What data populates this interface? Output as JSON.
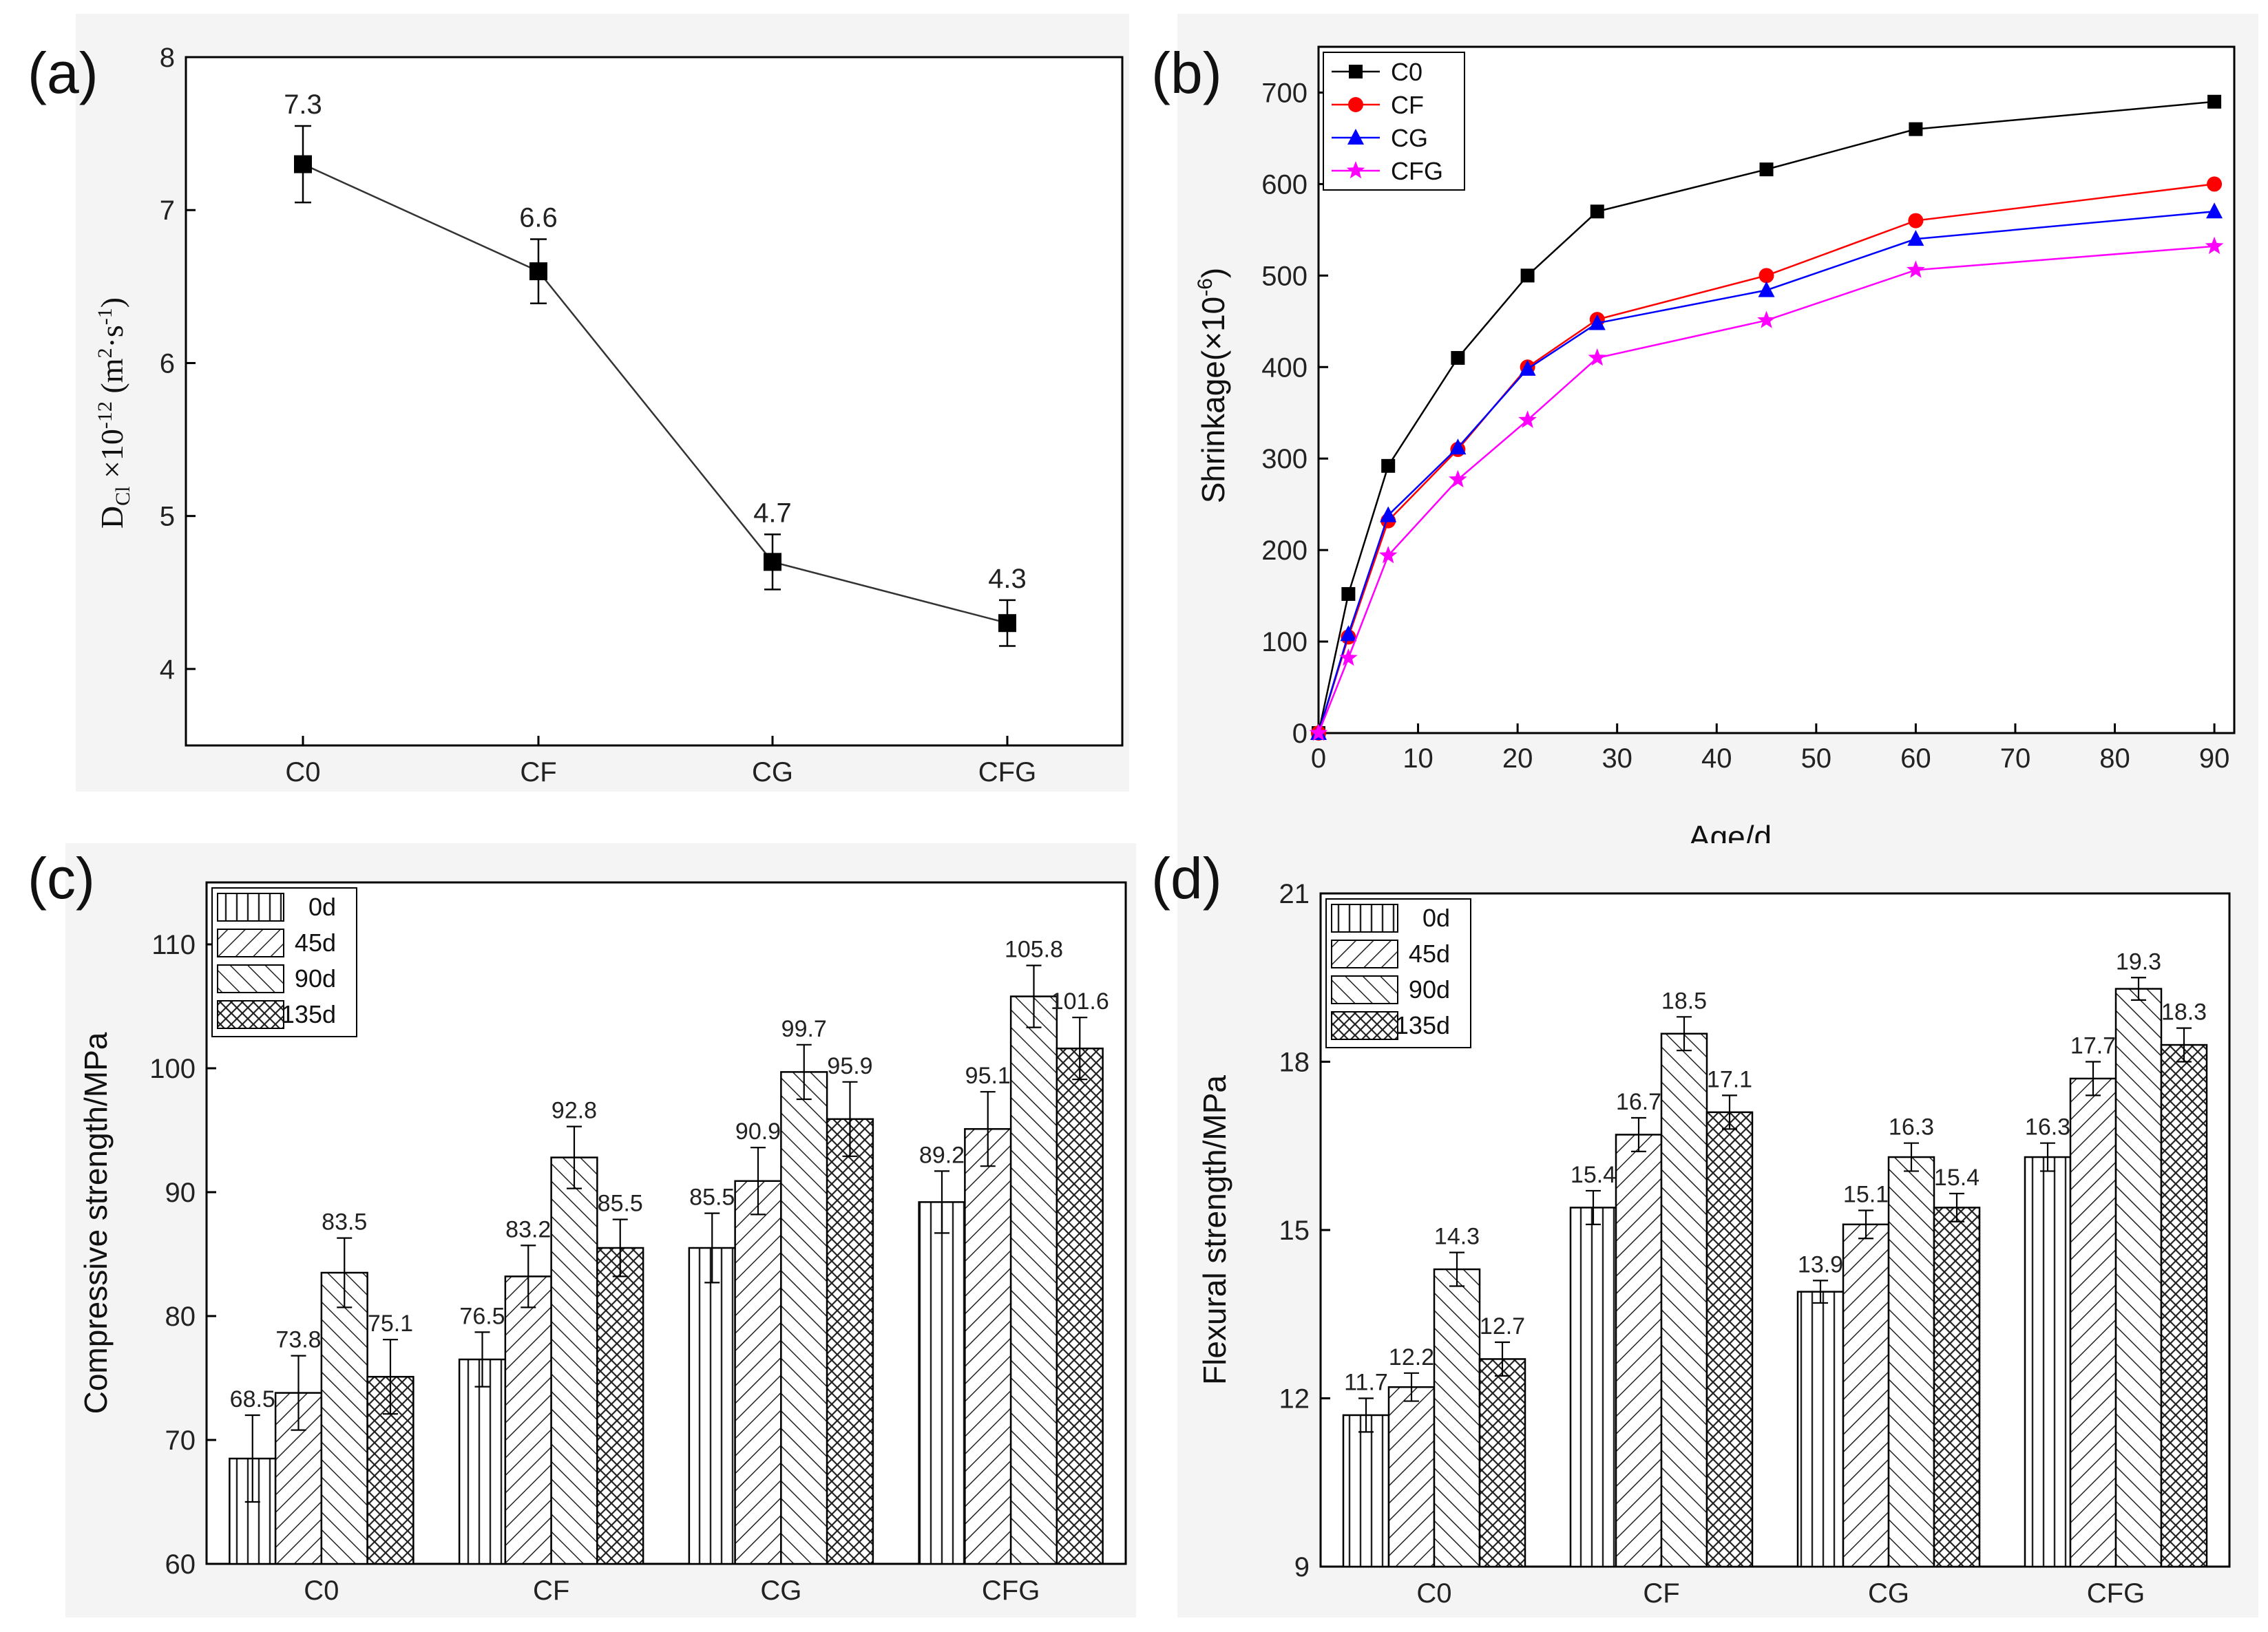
{
  "chart_data": [
    {
      "id": "a",
      "panel_label": "(a)",
      "type": "line",
      "categories": [
        "C0",
        "CF",
        "CG",
        "CFG"
      ],
      "values": [
        7.3,
        6.6,
        4.7,
        4.3
      ],
      "value_labels": [
        "7.3",
        "6.6",
        "4.7",
        "4.3"
      ],
      "errors": [
        0.25,
        0.21,
        0.18,
        0.15
      ],
      "ylim": [
        3.5,
        8
      ],
      "yticks": [
        4,
        5,
        6,
        7,
        8
      ],
      "ylabel": {
        "main": "D",
        "sub": "Cl",
        "mid": " ×10",
        "exp": "-12",
        "units": " (m",
        "exp2": "2",
        "mid2": "·s",
        "exp3": "-1",
        "close": ")"
      },
      "color": "#000000",
      "marker": "square"
    },
    {
      "id": "b",
      "panel_label": "(b)",
      "type": "line",
      "x": [
        0,
        3,
        7,
        14,
        21,
        28,
        45,
        60,
        90
      ],
      "series": [
        {
          "name": "C0",
          "color": "#000000",
          "marker": "square",
          "values": [
            0,
            152,
            292,
            410,
            500,
            570,
            616,
            660,
            690
          ]
        },
        {
          "name": "CF",
          "color": "#ff0000",
          "marker": "circle",
          "values": [
            0,
            105,
            232,
            310,
            400,
            452,
            500,
            560,
            600
          ]
        },
        {
          "name": "CG",
          "color": "#0000ff",
          "marker": "triangle",
          "values": [
            0,
            108,
            238,
            312,
            398,
            448,
            484,
            540,
            570
          ]
        },
        {
          "name": "CFG",
          "color": "#ff00ff",
          "marker": "star",
          "values": [
            0,
            82,
            194,
            277,
            342,
            410,
            451,
            506,
            532
          ]
        }
      ],
      "xlim": [
        0,
        92
      ],
      "xticks": [
        0,
        10,
        20,
        30,
        40,
        50,
        60,
        70,
        80,
        90
      ],
      "ylim": [
        0,
        750
      ],
      "yticks": [
        0,
        100,
        200,
        300,
        400,
        500,
        600,
        700
      ],
      "xlabel": "Age/d",
      "ylabel": {
        "main": "Shrinkage(×10",
        "exp": "-6",
        "close": ")"
      },
      "legend": "top-left"
    },
    {
      "id": "c",
      "panel_label": "(c)",
      "type": "bar",
      "categories": [
        "C0",
        "CF",
        "CG",
        "CFG"
      ],
      "series": [
        {
          "name": "0d",
          "pattern": "vertical",
          "values": [
            68.5,
            76.5,
            85.5,
            89.2
          ],
          "labels": [
            "68.5",
            "76.5",
            "85.5",
            "89.2"
          ],
          "errors": [
            3.5,
            2.2,
            2.8,
            2.5
          ]
        },
        {
          "name": "45d",
          "pattern": "diag-up",
          "values": [
            73.8,
            83.2,
            90.9,
            95.1
          ],
          "labels": [
            "73.8",
            "83.2",
            "90.9",
            "95.1"
          ],
          "errors": [
            3.0,
            2.5,
            2.7,
            3.0
          ]
        },
        {
          "name": "90d",
          "pattern": "diag-down",
          "values": [
            83.5,
            92.8,
            99.7,
            105.8
          ],
          "labels": [
            "83.5",
            "92.8",
            "99.7",
            "105.8"
          ],
          "errors": [
            2.8,
            2.5,
            2.2,
            2.5
          ]
        },
        {
          "name": "135d",
          "pattern": "cross",
          "values": [
            75.1,
            85.5,
            95.9,
            101.6
          ],
          "labels": [
            "75.1",
            "85.5",
            "95.9",
            "101.6"
          ],
          "errors": [
            3.0,
            2.3,
            3.0,
            2.5
          ]
        }
      ],
      "ylim": [
        60,
        115
      ],
      "yticks": [
        60,
        70,
        80,
        90,
        100,
        110
      ],
      "ylabel": "Compressive strength/MPa",
      "legend": "top-left"
    },
    {
      "id": "d",
      "panel_label": "(d)",
      "type": "bar",
      "categories": [
        "C0",
        "CF",
        "CG",
        "CFG"
      ],
      "series": [
        {
          "name": "0d",
          "pattern": "vertical",
          "values": [
            11.7,
            15.4,
            13.9,
            16.3
          ],
          "labels": [
            "11.7",
            "15.4",
            "13.9",
            "16.3"
          ],
          "errors": [
            0.3,
            0.3,
            0.2,
            0.25
          ]
        },
        {
          "name": "45d",
          "pattern": "diag-up",
          "values": [
            12.2,
            16.7,
            15.1,
            17.7
          ],
          "labels": [
            "12.2",
            "16.7",
            "15.1",
            "17.7"
          ],
          "errors": [
            0.25,
            0.3,
            0.25,
            0.3
          ]
        },
        {
          "name": "90d",
          "pattern": "diag-down",
          "values": [
            14.3,
            18.5,
            16.3,
            19.3
          ],
          "labels": [
            "14.3",
            "18.5",
            "16.3",
            "19.3"
          ],
          "errors": [
            0.3,
            0.3,
            0.25,
            0.2
          ]
        },
        {
          "name": "135d",
          "pattern": "cross",
          "values": [
            12.7,
            17.1,
            15.4,
            18.3
          ],
          "labels": [
            "12.7",
            "17.1",
            "15.4",
            "18.3"
          ],
          "errors": [
            0.3,
            0.3,
            0.25,
            0.3
          ]
        }
      ],
      "ylim": [
        9,
        21
      ],
      "yticks": [
        9,
        12,
        15,
        18,
        21
      ],
      "ylabel": "Flexural strength/MPa",
      "legend": "top-left"
    }
  ]
}
